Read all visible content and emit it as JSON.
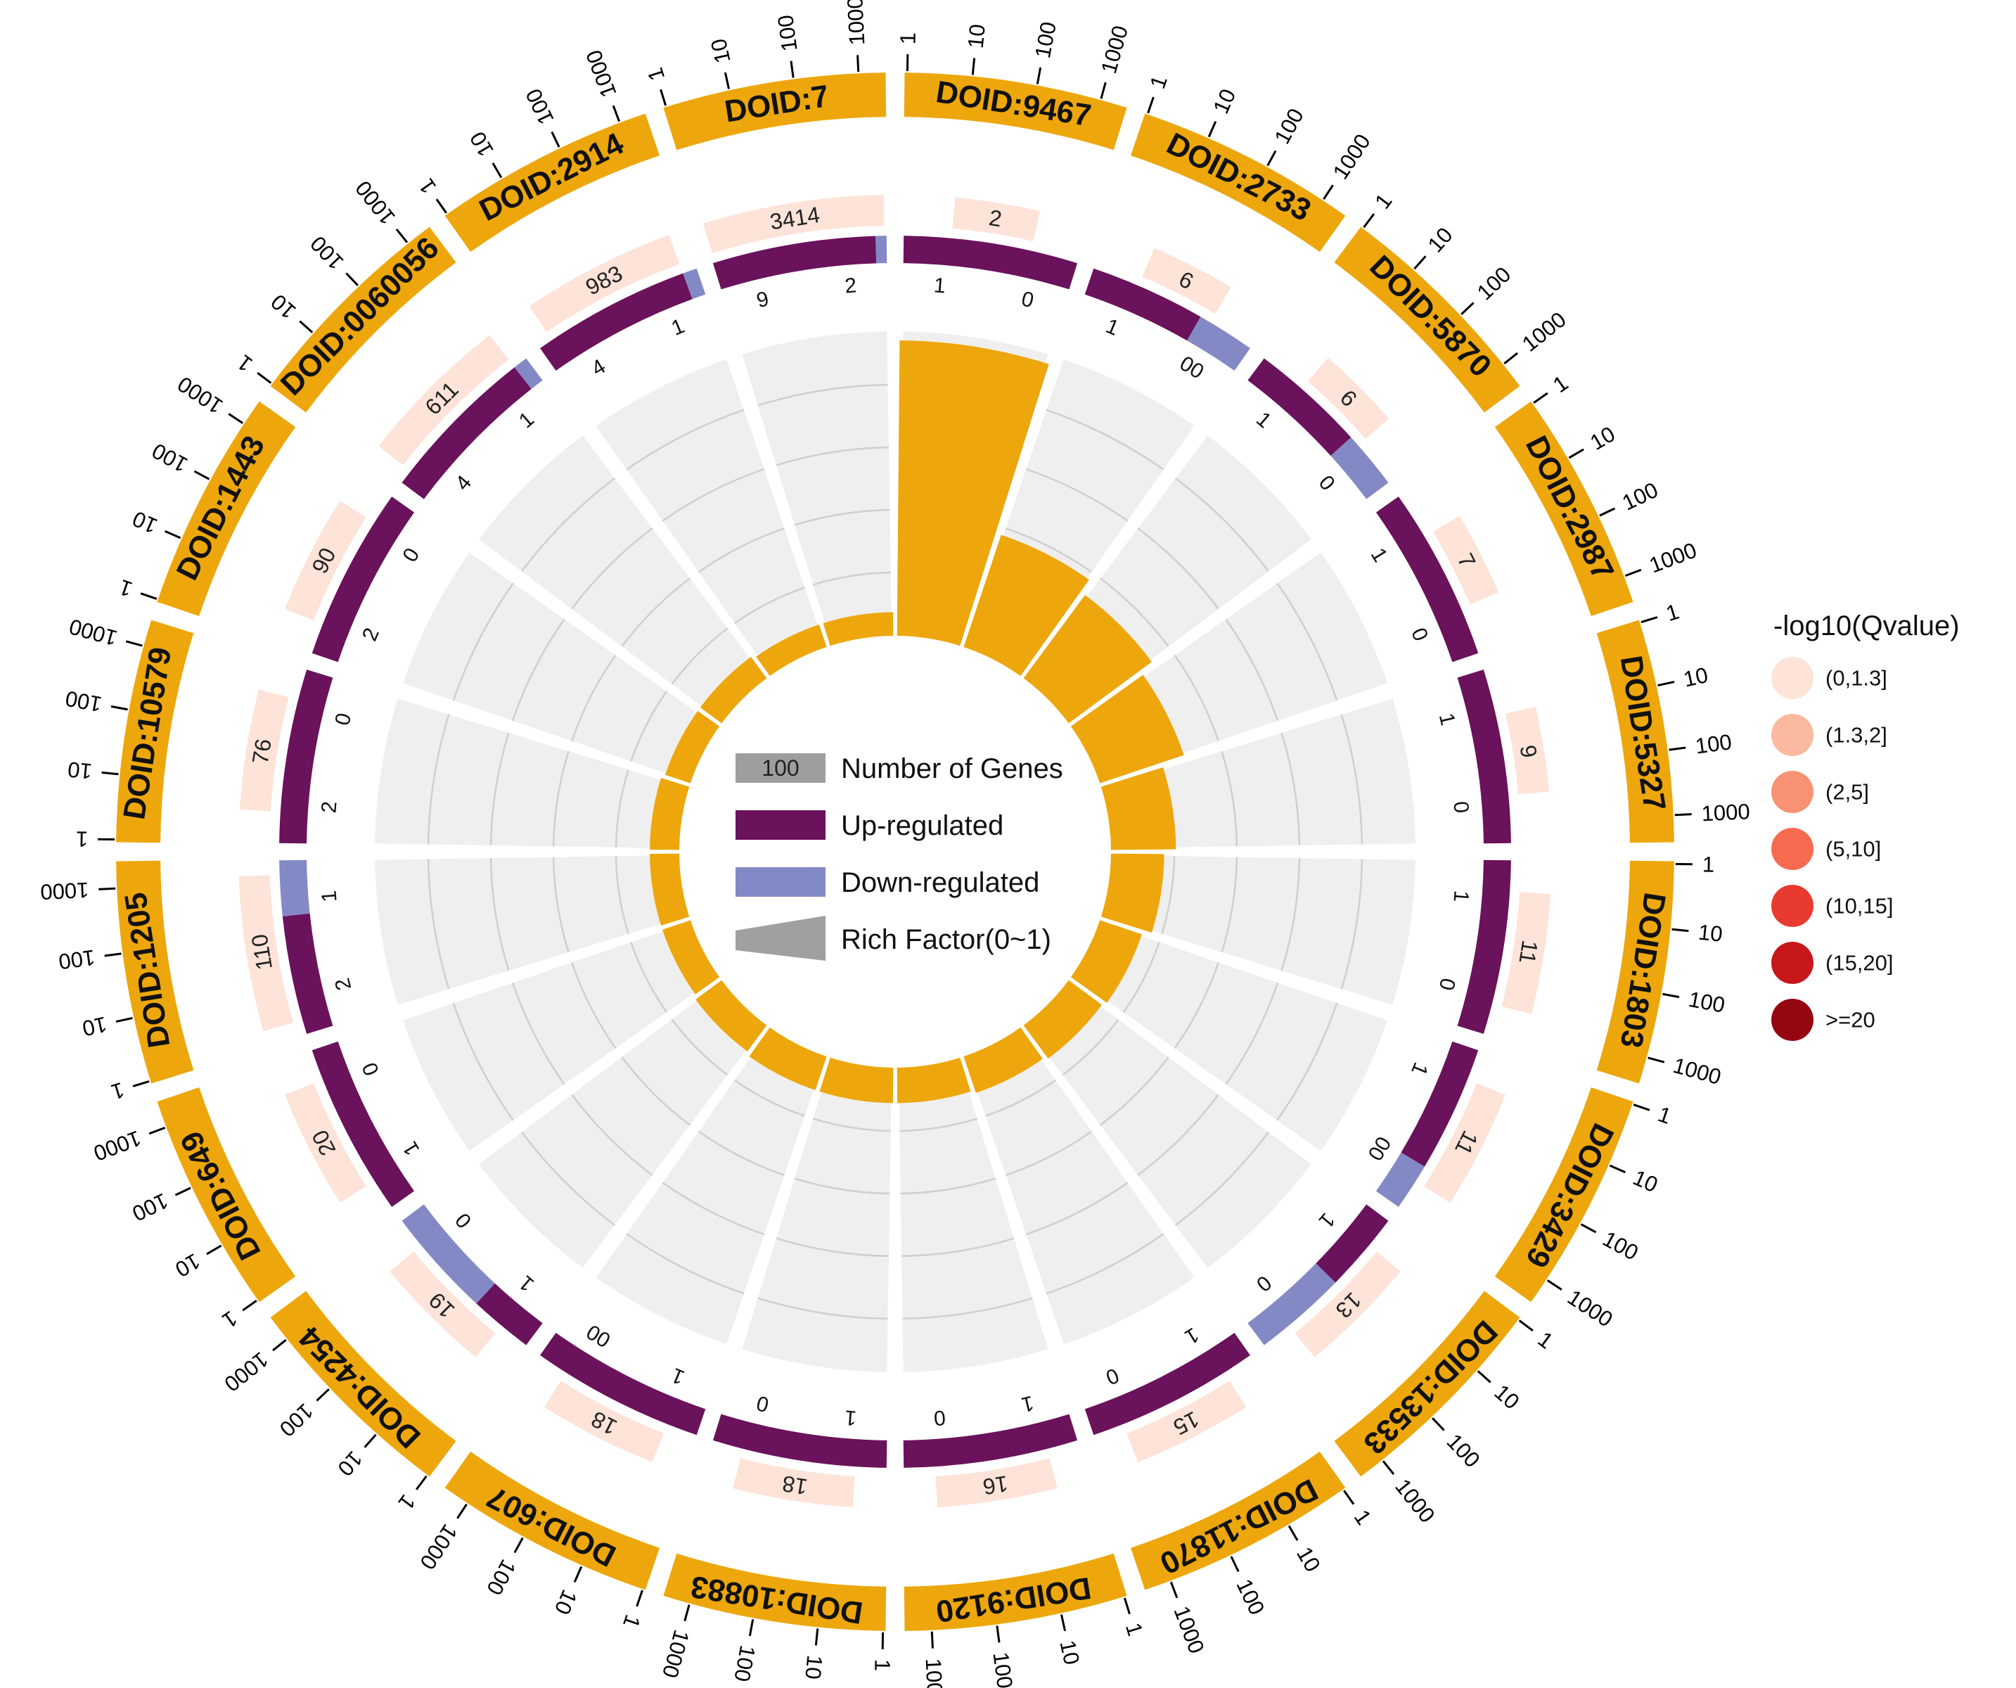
{
  "chart_data": {
    "type": "circos",
    "axis_scale": "log",
    "ticks": [
      "1",
      "10",
      "100",
      "1000"
    ],
    "colors": {
      "term_block": "#EDA70C",
      "rich_factor": "#EDA70C",
      "up": "#6A125B",
      "down": "#8389C5",
      "track_bg": "#EFEFEF"
    },
    "terms": [
      {
        "id": "DOID:9467",
        "genes": 2,
        "up": 2,
        "down": 0,
        "up_label": "1",
        "down_label": "0",
        "rich": 1.0,
        "q_bin": 0
      },
      {
        "id": "DOID:2733",
        "genes": 6,
        "up": 4,
        "down": 2,
        "up_label": "1",
        "down_label": "00",
        "rich": 0.4,
        "q_bin": 0
      },
      {
        "id": "DOID:5870",
        "genes": 6,
        "up": 4,
        "down": 2,
        "up_label": "1",
        "down_label": "0",
        "rich": 0.35,
        "q_bin": 0
      },
      {
        "id": "DOID:2987",
        "genes": 7,
        "up": 7,
        "down": 0,
        "up_label": "1",
        "down_label": "0",
        "rich": 0.3,
        "q_bin": 0
      },
      {
        "id": "DOID:5327",
        "genes": 9,
        "up": 9,
        "down": 0,
        "up_label": "1",
        "down_label": "0",
        "rich": 0.22,
        "q_bin": 0
      },
      {
        "id": "DOID:1803",
        "genes": 11,
        "up": 11,
        "down": 0,
        "up_label": "1",
        "down_label": "0",
        "rich": 0.18,
        "q_bin": 0
      },
      {
        "id": "DOID:3429",
        "genes": 11,
        "up": 8,
        "down": 3,
        "up_label": "1",
        "down_label": "00",
        "rich": 0.15,
        "q_bin": 0
      },
      {
        "id": "DOID:13533",
        "genes": 13,
        "up": 6,
        "down": 7,
        "up_label": "1",
        "down_label": "0",
        "rich": 0.14,
        "q_bin": 0
      },
      {
        "id": "DOID:11870",
        "genes": 15,
        "up": 15,
        "down": 0,
        "up_label": "1",
        "down_label": "0",
        "rich": 0.13,
        "q_bin": 0
      },
      {
        "id": "DOID:9120",
        "genes": 16,
        "up": 16,
        "down": 0,
        "up_label": "1",
        "down_label": "0",
        "rich": 0.12,
        "q_bin": 0
      },
      {
        "id": "DOID:10883",
        "genes": 18,
        "up": 18,
        "down": 0,
        "up_label": "1",
        "down_label": "0",
        "rich": 0.12,
        "q_bin": 0
      },
      {
        "id": "DOID:607",
        "genes": 18,
        "up": 18,
        "down": 0,
        "up_label": "1",
        "down_label": "00",
        "rich": 0.12,
        "q_bin": 0
      },
      {
        "id": "DOID:4254",
        "genes": 19,
        "up": 7,
        "down": 12,
        "up_label": "1",
        "down_label": "0",
        "rich": 0.11,
        "q_bin": 0
      },
      {
        "id": "DOID:649",
        "genes": 20,
        "up": 20,
        "down": 0,
        "up_label": "1",
        "down_label": "0",
        "rich": 0.1,
        "q_bin": 0
      },
      {
        "id": "DOID:1205",
        "genes": 110,
        "up": 75,
        "down": 35,
        "up_label": "2",
        "down_label": "1",
        "rich": 0.1,
        "q_bin": 0
      },
      {
        "id": "DOID:10579",
        "genes": 76,
        "up": 76,
        "down": 0,
        "up_label": "2",
        "down_label": "0",
        "rich": 0.1,
        "q_bin": 0
      },
      {
        "id": "DOID:1443",
        "genes": 90,
        "up": 90,
        "down": 0,
        "up_label": "2",
        "down_label": "0",
        "rich": 0.09,
        "q_bin": 0
      },
      {
        "id": "DOID:0060056",
        "genes": 611,
        "up": 560,
        "down": 51,
        "up_label": "4",
        "down_label": "1",
        "rich": 0.09,
        "q_bin": 0
      },
      {
        "id": "DOID:2914",
        "genes": 983,
        "up": 902,
        "down": 81,
        "up_label": "4",
        "down_label": "1",
        "rich": 0.08,
        "q_bin": 0
      },
      {
        "id": "DOID:7",
        "genes": 3414,
        "up": 3200,
        "down": 214,
        "up_label": "9",
        "down_label": "2",
        "rich": 0.08,
        "q_bin": 0
      }
    ]
  },
  "legend": {
    "genes_box_value": "100",
    "genes_label": "Number of Genes",
    "up_label": "Up-regulated",
    "down_label": "Down-regulated",
    "rich_label": "Rich Factor(0~1)",
    "genes_color": "#9E9E9E",
    "rich_color": "#A0A0A0"
  },
  "q_legend": {
    "title": "-log10(Qvalue)",
    "items": [
      {
        "label": "(0,1.3]",
        "color": "#FDE3D8"
      },
      {
        "label": "(1.3,2]",
        "color": "#FBB9A0"
      },
      {
        "label": "(2,5]",
        "color": "#F99274"
      },
      {
        "label": "(5,10]",
        "color": "#F66A4F"
      },
      {
        "label": "(10,15]",
        "color": "#E93A30"
      },
      {
        "label": "(15,20]",
        "color": "#C8161D"
      },
      {
        "label": ">=20",
        "color": "#950610"
      }
    ]
  }
}
